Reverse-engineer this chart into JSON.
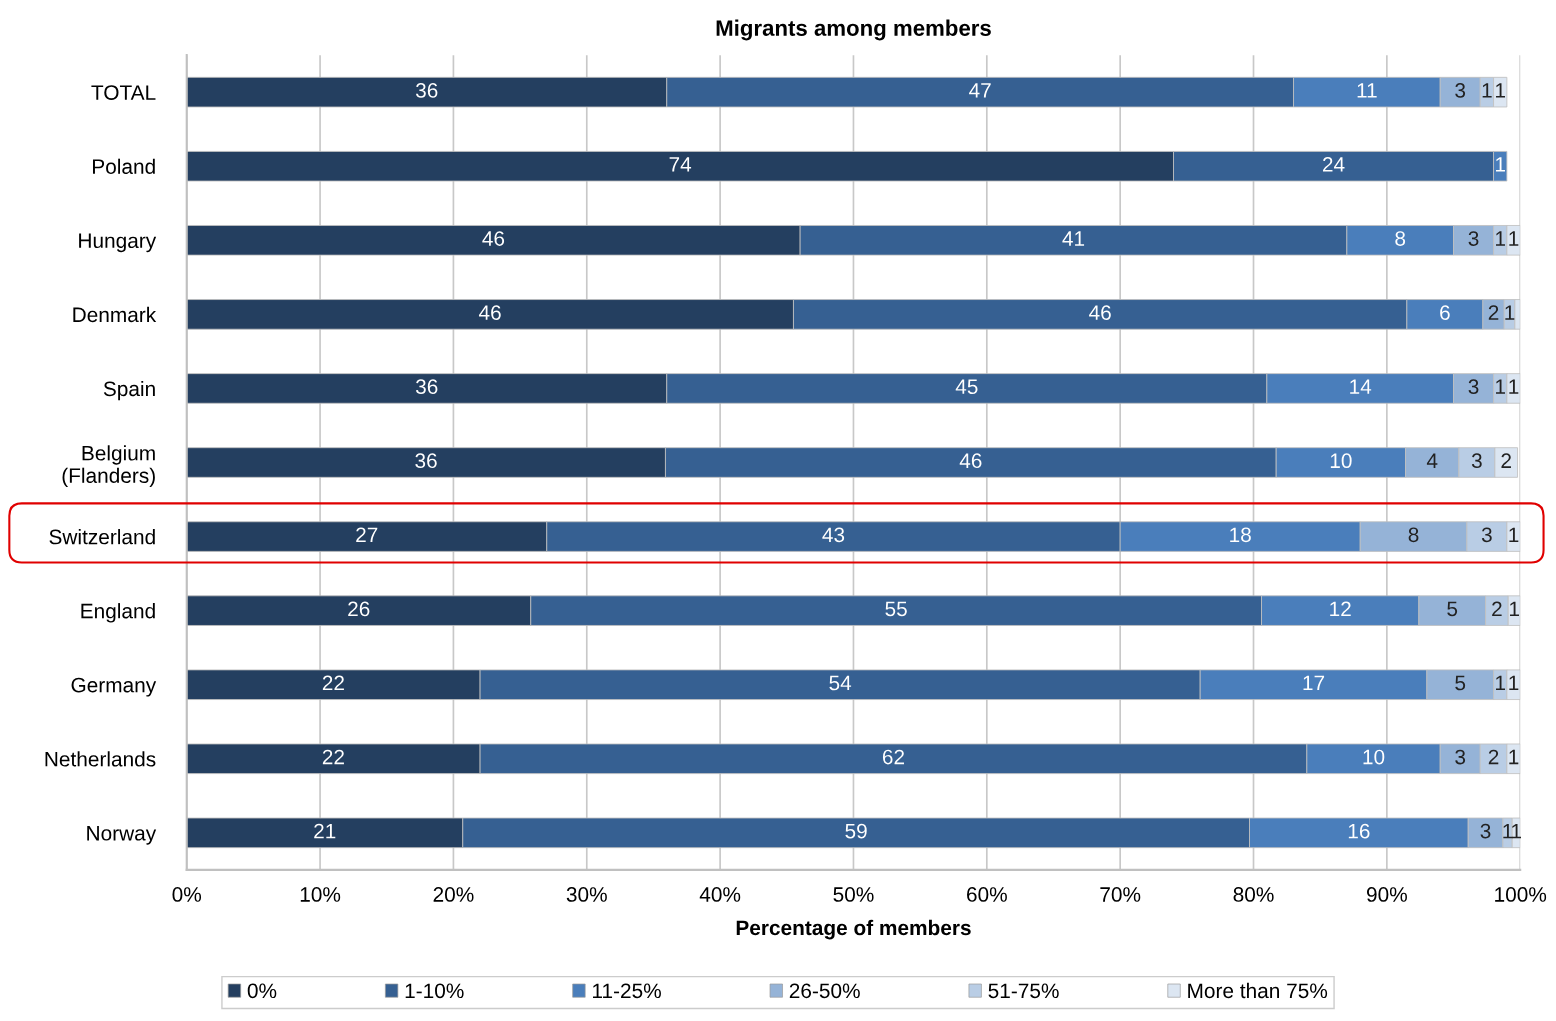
{
  "chart_data": {
    "type": "bar",
    "orientation": "horizontal",
    "stacked": true,
    "title": "Migrants among members",
    "xlabel": "Percentage of members",
    "categories": [
      "TOTAL",
      "Poland",
      "Hungary",
      "Denmark",
      "Spain",
      "Belgium\n(Flanders)",
      "Switzerland",
      "England",
      "Germany",
      "Netherlands",
      "Norway"
    ],
    "series": [
      {
        "name": "0%",
        "color": "#243f60",
        "values": [
          36,
          74,
          46,
          45.5,
          36,
          35.9,
          27,
          25.8,
          22,
          22,
          20.7
        ],
        "value_labels": [
          "36",
          "74",
          "46",
          "46",
          "36",
          "36",
          "27",
          "26",
          "22",
          "22",
          "21"
        ]
      },
      {
        "name": "1-10%",
        "color": "#366092",
        "values": [
          47,
          24,
          41,
          46.0,
          45,
          45.8,
          43,
          54.8,
          54,
          62,
          59.0
        ],
        "value_labels": [
          "47",
          "24",
          "41",
          "46",
          "45",
          "46",
          "43",
          "55",
          "54",
          "62",
          "59"
        ]
      },
      {
        "name": "11-25%",
        "color": "#4a7ebb",
        "values": [
          11,
          1,
          8,
          5.7,
          14,
          9.7,
          18,
          11.8,
          17,
          10,
          16.4
        ],
        "value_labels": [
          "11",
          "1",
          "8",
          "6",
          "14",
          "10",
          "18",
          "12",
          "17",
          "10",
          "16"
        ]
      },
      {
        "name": "26-50%",
        "color": "#95b3d7",
        "values": [
          3,
          null,
          3,
          1.6,
          3,
          4.0,
          8,
          5.0,
          5,
          3,
          2.6
        ],
        "value_labels": [
          "3",
          null,
          "3",
          "2",
          "3",
          "4",
          "8",
          "5",
          "5",
          "3",
          "3"
        ]
      },
      {
        "name": "51-75%",
        "color": "#b9cde5",
        "values": [
          1,
          null,
          1,
          0.8,
          1,
          2.7,
          3,
          1.7,
          1,
          2,
          0.7
        ],
        "value_labels": [
          "1",
          null,
          "1",
          "1",
          "1",
          "3",
          "3",
          "2",
          "1",
          "2",
          "1"
        ]
      },
      {
        "name": "More than 75%",
        "color": "#dce6f2",
        "values": [
          1,
          null,
          1,
          0.4,
          1,
          1.7,
          1,
          0.9,
          1,
          1,
          0.6
        ],
        "value_labels": [
          "1",
          null,
          "1",
          null,
          "1",
          "2",
          "1",
          "1",
          "1",
          "1",
          "1"
        ]
      }
    ],
    "xlim": [
      0,
      100
    ],
    "xticks": [
      {
        "value": 0,
        "label": "0%"
      },
      {
        "value": 10,
        "label": "10%"
      },
      {
        "value": 20,
        "label": "20%"
      },
      {
        "value": 30,
        "label": "30%"
      },
      {
        "value": 40,
        "label": "40%"
      },
      {
        "value": 50,
        "label": "50%"
      },
      {
        "value": 60,
        "label": "60%"
      },
      {
        "value": 70,
        "label": "70%"
      },
      {
        "value": 80,
        "label": "80%"
      },
      {
        "value": 90,
        "label": "90%"
      },
      {
        "value": 100,
        "label": "100%"
      }
    ],
    "grid": "x",
    "legend": "bottom"
  }
}
